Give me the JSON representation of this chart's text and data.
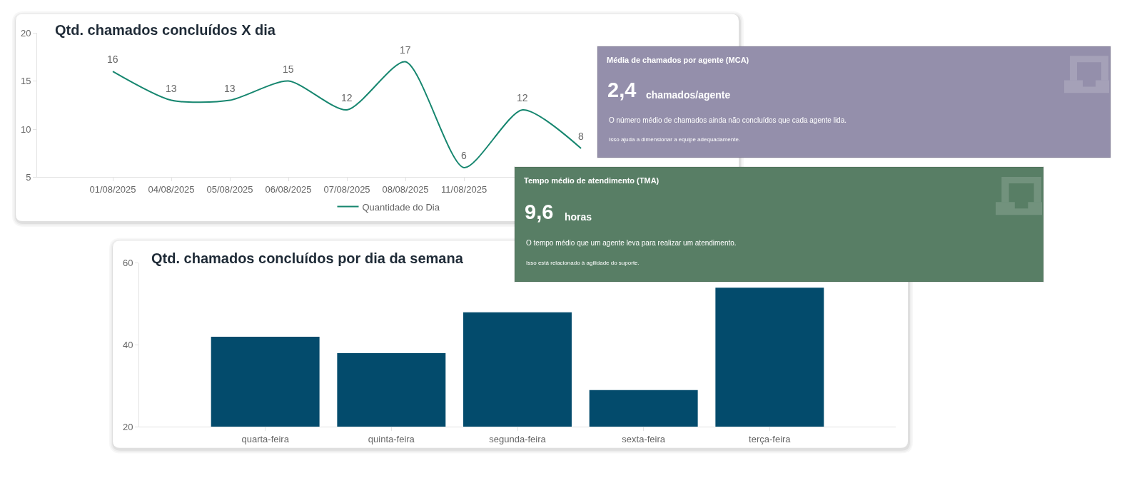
{
  "chart_data": [
    {
      "type": "line",
      "title": "Qtd. chamados concluídos X dia",
      "categories": [
        "01/08/2025",
        "04/08/2025",
        "05/08/2025",
        "06/08/2025",
        "07/08/2025",
        "08/08/2025",
        "11/08/2025",
        null,
        null
      ],
      "series": [
        {
          "name": "Quantidade do Dia",
          "color": "#16866f",
          "values": [
            16,
            13,
            13,
            15,
            12,
            17,
            6,
            12,
            8
          ]
        }
      ],
      "ylim": [
        5,
        20
      ],
      "yticks": [
        5,
        10,
        15,
        20
      ],
      "data_labels": true,
      "legend": "bottom",
      "grid": false
    },
    {
      "type": "other",
      "title": "Média de chamados por agente (MCA)",
      "annotations": [
        "2,4",
        "chamados/agente",
        "O número médio de chamados ainda não concluídos que cada agente lida.",
        "Isso ajuda a dimensionar a equipe adequadamente."
      ],
      "color": "#948fab"
    },
    {
      "type": "other",
      "title": "Tempo médio de atendimento (TMA)",
      "annotations": [
        "9,6",
        "horas",
        "O tempo médio que um agente leva para realizar um atendimento.",
        "Isso está relacionado à agilidade do suporte."
      ],
      "color": "#587e65"
    },
    {
      "type": "bar",
      "title": "Qtd. chamados concluídos por dia da semana",
      "categories": [
        "quarta-feira",
        "quinta-feira",
        "segunda-feira",
        "sexta-feira",
        "terça-feira"
      ],
      "values": [
        42,
        38,
        48,
        29,
        54
      ],
      "color": "#034b6c",
      "ylim": [
        20,
        60
      ],
      "yticks": [
        20,
        40,
        60
      ],
      "grid": false,
      "legend": false
    }
  ]
}
